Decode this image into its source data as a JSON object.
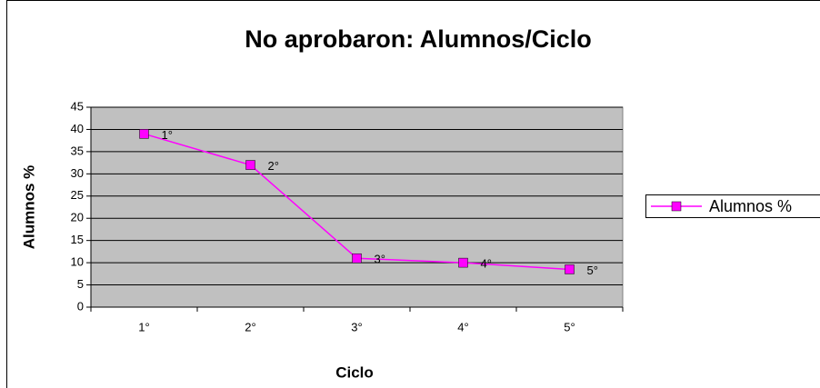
{
  "chart_data": {
    "type": "line",
    "title": "No aprobaron: Alumnos/Ciclo",
    "x_label": "Ciclo",
    "y_label": "Alumnos %",
    "categories": [
      "1°",
      "2°",
      "3°",
      "4°",
      "5°"
    ],
    "series": [
      {
        "name": "Alumnos %",
        "color": "#ff00ff",
        "values": [
          39,
          32,
          11,
          10,
          8.5
        ]
      }
    ],
    "ylim": [
      0,
      45
    ],
    "yticks": [
      0,
      5,
      10,
      15,
      20,
      25,
      30,
      35,
      40,
      45
    ],
    "grid": true,
    "legend": "right",
    "plot_background": "#c0c0c0"
  }
}
